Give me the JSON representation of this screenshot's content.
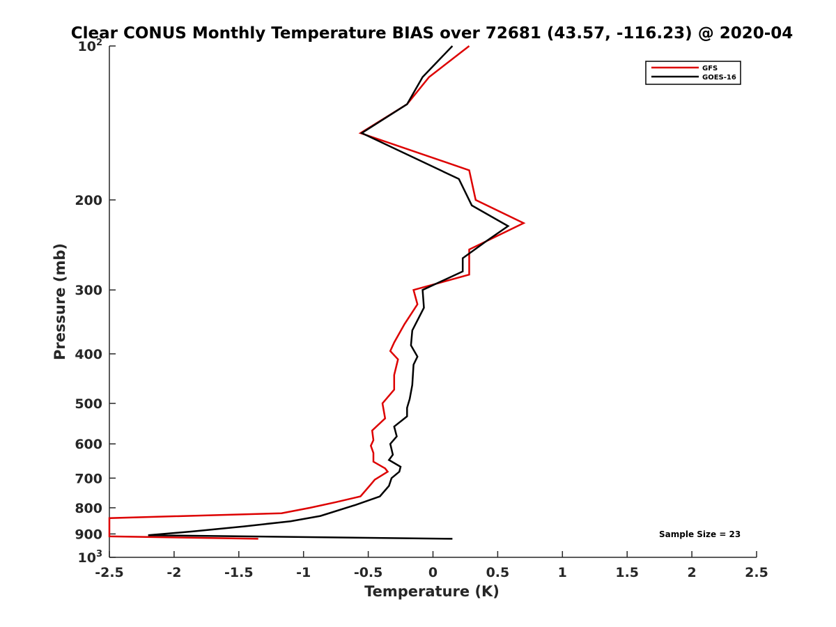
{
  "chart_data": {
    "type": "line",
    "title": "Clear CONUS Monthly Temperature BIAS over 72681 (43.57, -116.23) @ 2020-04",
    "xlabel": "Temperature (K)",
    "ylabel": "Pressure (mb)",
    "xlim": [
      -2.5,
      2.5
    ],
    "ylim": [
      100,
      1000
    ],
    "yscale": "log",
    "y_reversed": true,
    "grid": false,
    "x_ticks": [
      "-2.5",
      "-2",
      "-1.5",
      "-1",
      "-0.5",
      "0",
      "0.5",
      "1",
      "1.5",
      "2",
      "2.5"
    ],
    "x_tick_values": [
      -2.5,
      -2,
      -1.5,
      -1,
      -0.5,
      0,
      0.5,
      1,
      1.5,
      2,
      2.5
    ],
    "y_ticks": [
      {
        "value": 100,
        "base": "10",
        "exp": "2"
      },
      {
        "value": 200,
        "label": "200"
      },
      {
        "value": 300,
        "label": "300"
      },
      {
        "value": 400,
        "label": "400"
      },
      {
        "value": 500,
        "label": "500"
      },
      {
        "value": 600,
        "label": "600"
      },
      {
        "value": 700,
        "label": "700"
      },
      {
        "value": 800,
        "label": "800"
      },
      {
        "value": 900,
        "label": "900"
      },
      {
        "value": 1000,
        "base": "10",
        "exp": "3"
      }
    ],
    "legend_position": "top-right",
    "annotation": "Sample Size = 23",
    "series": [
      {
        "name": "GFS",
        "color": "#dd0000",
        "points": [
          [
            0.28,
            100
          ],
          [
            -0.03,
            115
          ],
          [
            -0.2,
            130
          ],
          [
            -0.56,
            148
          ],
          [
            0.28,
            175
          ],
          [
            0.33,
            200
          ],
          [
            0.7,
            222
          ],
          [
            0.28,
            250
          ],
          [
            0.28,
            280
          ],
          [
            -0.15,
            300
          ],
          [
            -0.12,
            320
          ],
          [
            -0.22,
            350
          ],
          [
            -0.3,
            380
          ],
          [
            -0.33,
            395
          ],
          [
            -0.27,
            410
          ],
          [
            -0.3,
            440
          ],
          [
            -0.3,
            470
          ],
          [
            -0.39,
            500
          ],
          [
            -0.37,
            535
          ],
          [
            -0.47,
            565
          ],
          [
            -0.46,
            590
          ],
          [
            -0.48,
            605
          ],
          [
            -0.46,
            625
          ],
          [
            -0.46,
            650
          ],
          [
            -0.37,
            670
          ],
          [
            -0.35,
            680
          ],
          [
            -0.45,
            705
          ],
          [
            -0.48,
            720
          ],
          [
            -0.56,
            760
          ],
          [
            -0.75,
            780
          ],
          [
            -0.95,
            800
          ],
          [
            -1.17,
            820
          ],
          [
            -2.5,
            838
          ],
          [
            -2.5,
            910
          ],
          [
            -1.35,
            920
          ]
        ]
      },
      {
        "name": "GOES-16",
        "color": "#000000",
        "points": [
          [
            0.15,
            100
          ],
          [
            -0.08,
            115
          ],
          [
            -0.2,
            130
          ],
          [
            -0.55,
            148
          ],
          [
            0.2,
            182
          ],
          [
            0.3,
            205
          ],
          [
            0.58,
            225
          ],
          [
            0.42,
            240
          ],
          [
            0.23,
            260
          ],
          [
            0.23,
            276
          ],
          [
            -0.08,
            300
          ],
          [
            -0.07,
            325
          ],
          [
            -0.16,
            360
          ],
          [
            -0.17,
            385
          ],
          [
            -0.12,
            405
          ],
          [
            -0.15,
            420
          ],
          [
            -0.16,
            460
          ],
          [
            -0.18,
            490
          ],
          [
            -0.2,
            510
          ],
          [
            -0.2,
            530
          ],
          [
            -0.3,
            555
          ],
          [
            -0.28,
            580
          ],
          [
            -0.33,
            600
          ],
          [
            -0.31,
            630
          ],
          [
            -0.34,
            645
          ],
          [
            -0.25,
            665
          ],
          [
            -0.26,
            680
          ],
          [
            -0.32,
            700
          ],
          [
            -0.34,
            725
          ],
          [
            -0.41,
            760
          ],
          [
            -0.6,
            790
          ],
          [
            -0.87,
            830
          ],
          [
            -1.1,
            850
          ],
          [
            -1.46,
            870
          ],
          [
            -1.86,
            890
          ],
          [
            -2.2,
            905
          ],
          [
            0.15,
            920
          ]
        ]
      }
    ]
  }
}
